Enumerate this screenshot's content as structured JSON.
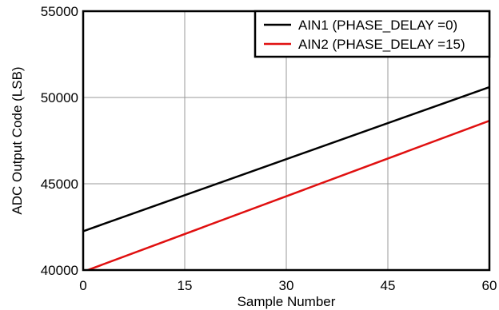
{
  "chart_data": {
    "type": "line",
    "xlabel": "Sample Number",
    "ylabel": "ADC Output Code (LSB)",
    "xlim": [
      0,
      60
    ],
    "ylim": [
      40000,
      55000
    ],
    "xticks": [
      0,
      15,
      30,
      45,
      60
    ],
    "yticks": [
      40000,
      45000,
      50000,
      55000
    ],
    "x_tick_labels": [
      "0",
      "15",
      "30",
      "45",
      "60"
    ],
    "y_tick_labels": [
      "40000",
      "45000",
      "50000",
      "55000"
    ],
    "grid": true,
    "legend_position": "top-right",
    "series": [
      {
        "name": "AIN1 (PHASE_DELAY =0)",
        "color": "#000000",
        "x": [
          0,
          60
        ],
        "y": [
          42250,
          50600
        ]
      },
      {
        "name": "AIN2 (PHASE_DELAY =15)",
        "color": "#e01010",
        "x": [
          0,
          60
        ],
        "y": [
          39900,
          48650
        ]
      }
    ]
  }
}
